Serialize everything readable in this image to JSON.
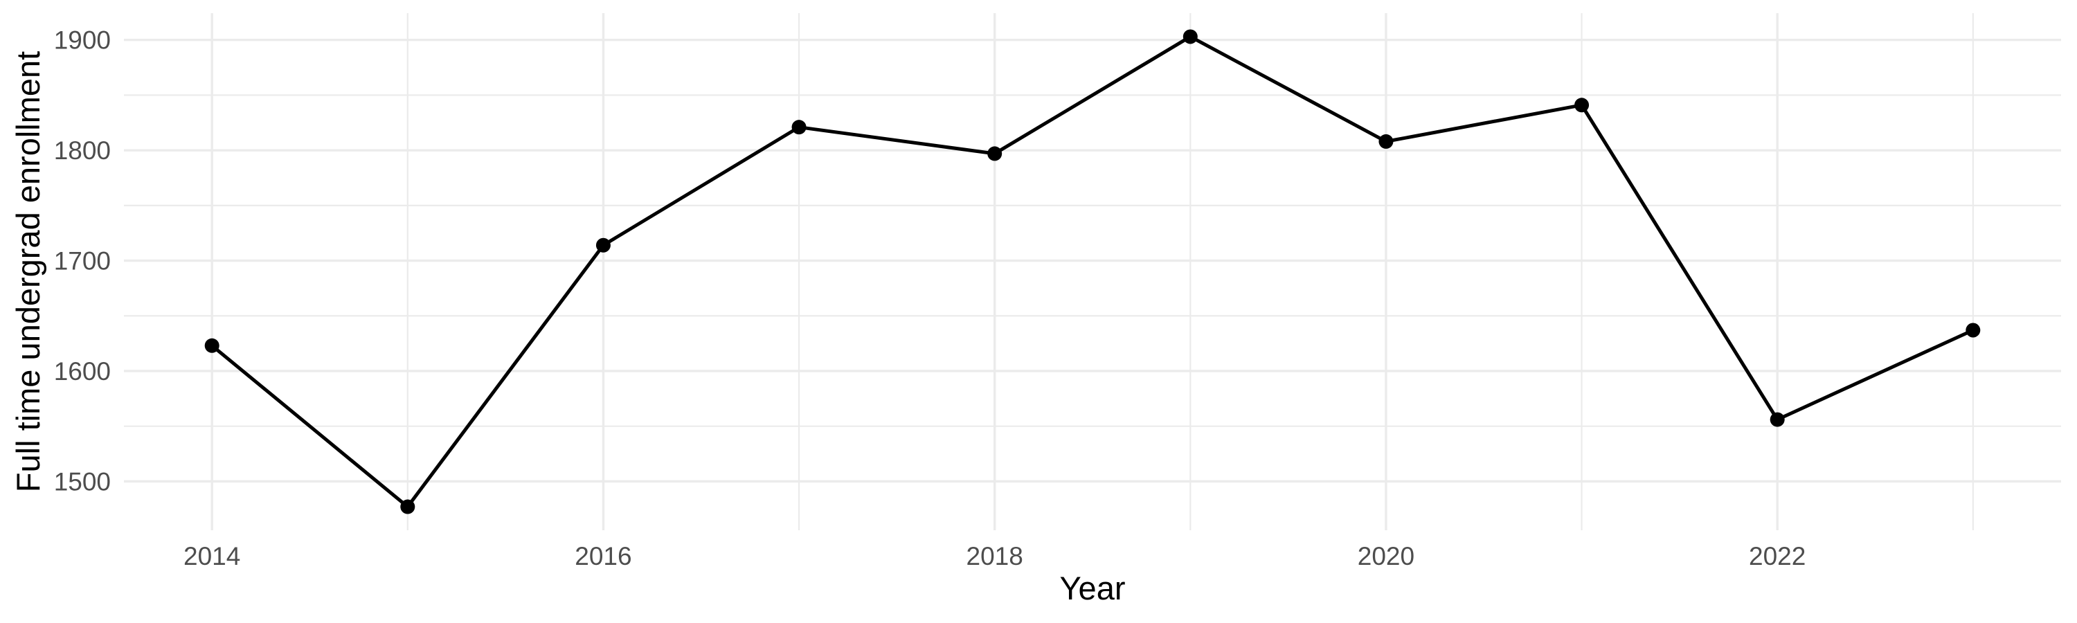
{
  "chart_data": {
    "type": "line",
    "title": "",
    "xlabel": "Year",
    "ylabel": "Full time undergrad enrollment",
    "x": [
      2014,
      2015,
      2016,
      2017,
      2018,
      2019,
      2020,
      2021,
      2022,
      2023
    ],
    "series": [
      {
        "name": "Full time undergrad enrollment",
        "values": [
          1623,
          1477,
          1714,
          1821,
          1797,
          1903,
          1808,
          1841,
          1556,
          1637
        ]
      }
    ],
    "x_axis": {
      "major_ticks": [
        2014,
        2016,
        2018,
        2020,
        2022
      ],
      "minor_gridlines": [
        2015,
        2017,
        2019,
        2021,
        2023
      ],
      "range": [
        2013.55,
        2023.45
      ]
    },
    "y_axis": {
      "major_ticks": [
        1500,
        1600,
        1700,
        1800,
        1900
      ],
      "minor_gridlines": [
        1550,
        1650,
        1750,
        1850
      ],
      "range": [
        1455.7,
        1924.3
      ]
    },
    "grid": "major+minor",
    "legend": "none",
    "markers": true,
    "colors": {
      "background": "#FFFFFF",
      "grid": "#EBEBEB",
      "line": "#000000",
      "point": "#000000",
      "tick_label": "#4D4D4D",
      "axis_title": "#000000"
    }
  }
}
